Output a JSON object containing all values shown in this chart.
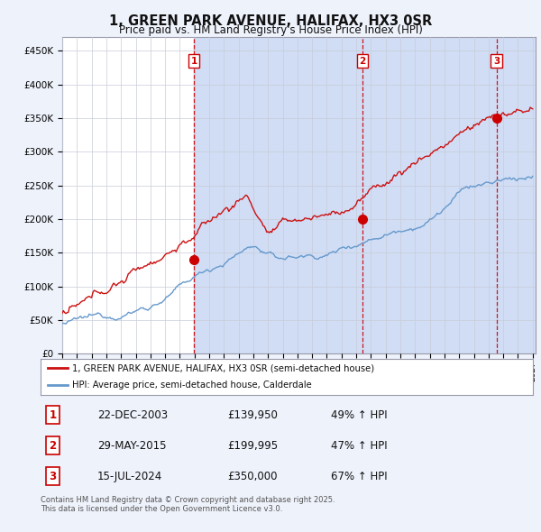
{
  "title": "1, GREEN PARK AVENUE, HALIFAX, HX3 0SR",
  "subtitle": "Price paid vs. HM Land Registry's House Price Index (HPI)",
  "ylim": [
    0,
    470000
  ],
  "yticks": [
    0,
    50000,
    100000,
    150000,
    200000,
    250000,
    300000,
    350000,
    400000,
    450000
  ],
  "ytick_labels": [
    "£0",
    "£50K",
    "£100K",
    "£150K",
    "£200K",
    "£250K",
    "£300K",
    "£350K",
    "£400K",
    "£450K"
  ],
  "xlim_start": 1995.3,
  "xlim_end": 2027.2,
  "sale_dates": [
    2003.97,
    2015.41,
    2024.54
  ],
  "sale_prices": [
    139950,
    199995,
    350000
  ],
  "sale_labels": [
    "1",
    "2",
    "3"
  ],
  "vline_color": "#cc0000",
  "sale_marker_color": "#cc0000",
  "legend_entry1": "1, GREEN PARK AVENUE, HALIFAX, HX3 0SR (semi-detached house)",
  "legend_entry2": "HPI: Average price, semi-detached house, Calderdale",
  "line_color_red": "#cc1111",
  "line_color_blue": "#6699cc",
  "table_rows": [
    [
      "1",
      "22-DEC-2003",
      "£139,950",
      "49% ↑ HPI"
    ],
    [
      "2",
      "29-MAY-2015",
      "£199,995",
      "47% ↑ HPI"
    ],
    [
      "3",
      "15-JUL-2024",
      "£350,000",
      "67% ↑ HPI"
    ]
  ],
  "footer": "Contains HM Land Registry data © Crown copyright and database right 2025.\nThis data is licensed under the Open Government Licence v3.0.",
  "background_color": "#eef2fb",
  "plot_bg_color": "#ffffff",
  "grid_color": "#c8ccd8",
  "shade_color": "#d0ddf5",
  "hatch_color": "#c0ccee"
}
